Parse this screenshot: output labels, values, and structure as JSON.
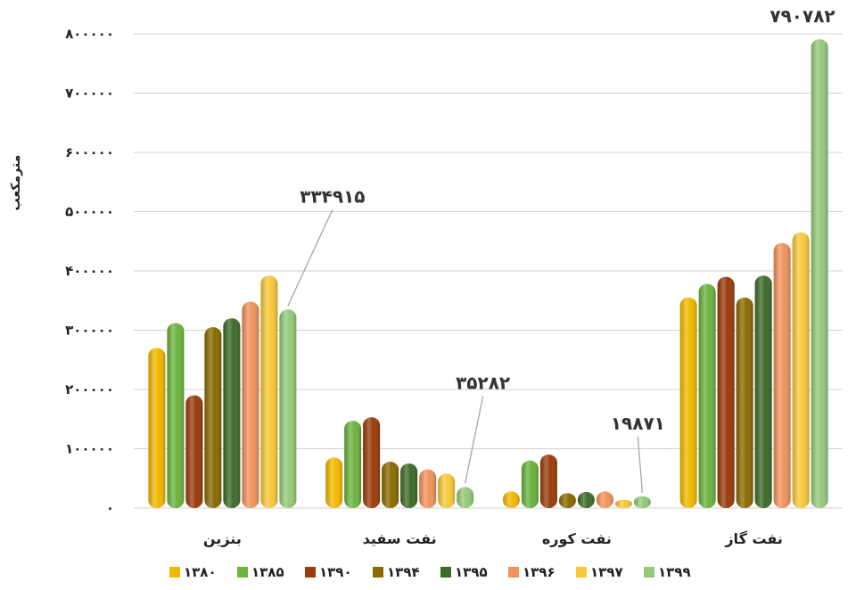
{
  "chart_data": {
    "type": "bar",
    "ylabel": "مترمکعب",
    "ylim": [
      0,
      800000
    ],
    "y_ticks": [
      {
        "value": 0,
        "label": "۰"
      },
      {
        "value": 100000,
        "label": "۱۰۰۰۰۰"
      },
      {
        "value": 200000,
        "label": "۲۰۰۰۰۰"
      },
      {
        "value": 300000,
        "label": "۳۰۰۰۰۰"
      },
      {
        "value": 400000,
        "label": "۴۰۰۰۰۰"
      },
      {
        "value": 500000,
        "label": "۵۰۰۰۰۰"
      },
      {
        "value": 600000,
        "label": "۶۰۰۰۰۰"
      },
      {
        "value": 700000,
        "label": "۷۰۰۰۰۰"
      },
      {
        "value": 800000,
        "label": "۸۰۰۰۰۰"
      }
    ],
    "grid": true,
    "legend_position": "bottom",
    "categories": [
      "بنزین",
      "نفت سفید",
      "نفت کوره",
      "نفت گاز"
    ],
    "series": [
      {
        "name": "۱۳۸۰",
        "color": "#F2B800",
        "values": [
          270000,
          85000,
          28000,
          355000
        ]
      },
      {
        "name": "۱۳۸۵",
        "color": "#6CB33F",
        "values": [
          312000,
          147000,
          80000,
          378000
        ]
      },
      {
        "name": "۱۳۹۰",
        "color": "#9A3C0B",
        "values": [
          190000,
          153000,
          90000,
          390000
        ]
      },
      {
        "name": "۱۳۹۴",
        "color": "#8A6A00",
        "values": [
          305000,
          78000,
          25000,
          355000
        ]
      },
      {
        "name": "۱۳۹۵",
        "color": "#3F6B2A",
        "values": [
          320000,
          75000,
          27000,
          392000
        ]
      },
      {
        "name": "۱۳۹۶",
        "color": "#F0935C",
        "values": [
          348000,
          65000,
          28000,
          447000
        ]
      },
      {
        "name": "۱۳۹۷",
        "color": "#F8C83A",
        "values": [
          392000,
          58000,
          14000,
          465000
        ]
      },
      {
        "name": "۱۳۹۹",
        "color": "#95C97A",
        "values": [
          334915,
          35282,
          19871,
          790782
        ]
      }
    ],
    "data_labels": [
      {
        "category": "بنزین",
        "series": "۱۳۹۹",
        "text": "۳۳۴۹۱۵"
      },
      {
        "category": "نفت سفید",
        "series": "۱۳۹۹",
        "text": "۳۵۲۸۲"
      },
      {
        "category": "نفت کوره",
        "series": "۱۳۹۹",
        "text": "۱۹۸۷۱"
      },
      {
        "category": "نفت گاز",
        "series": "۱۳۹۹",
        "text": "۷۹۰۷۸۲"
      }
    ]
  }
}
